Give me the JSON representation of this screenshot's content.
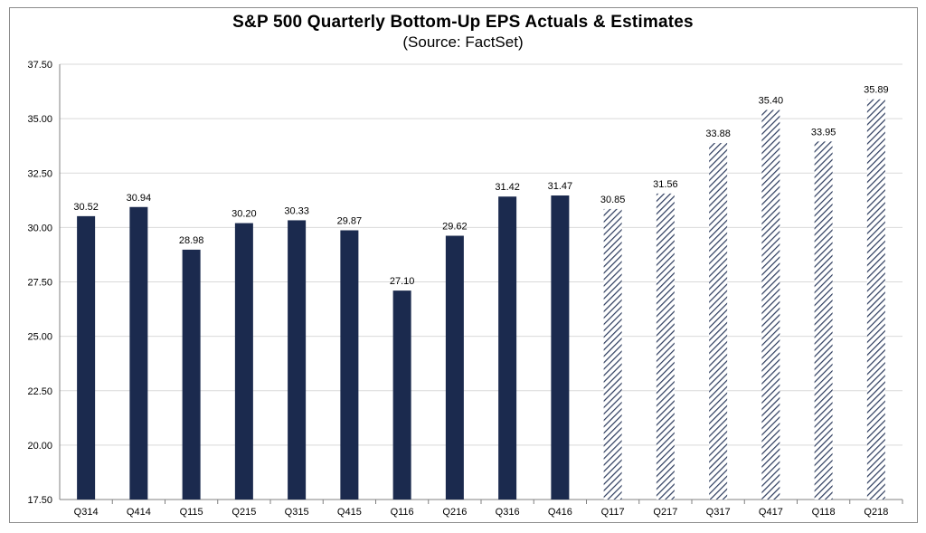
{
  "chart_data": {
    "type": "bar",
    "title": "S&P 500 Quarterly Bottom-Up EPS Actuals & Estimates",
    "subtitle": "(Source: FactSet)",
    "xlabel": "",
    "ylabel": "",
    "ylim": [
      17.5,
      37.5
    ],
    "yticks": [
      "17.50",
      "20.00",
      "22.50",
      "25.00",
      "27.50",
      "30.00",
      "32.50",
      "35.00",
      "37.50"
    ],
    "grid": true,
    "categories": [
      "Q314",
      "Q414",
      "Q115",
      "Q215",
      "Q315",
      "Q415",
      "Q116",
      "Q216",
      "Q316",
      "Q416",
      "Q117",
      "Q217",
      "Q317",
      "Q417",
      "Q118",
      "Q218"
    ],
    "values": [
      30.52,
      30.94,
      28.98,
      30.2,
      30.33,
      29.87,
      27.1,
      29.62,
      31.42,
      31.47,
      30.85,
      31.56,
      33.88,
      35.4,
      33.95,
      35.89
    ],
    "value_labels": [
      "30.52",
      "30.94",
      "28.98",
      "30.20",
      "30.33",
      "29.87",
      "27.10",
      "29.62",
      "31.42",
      "31.47",
      "30.85",
      "31.56",
      "33.88",
      "35.40",
      "33.95",
      "35.89"
    ],
    "bar_style": [
      "solid",
      "solid",
      "solid",
      "solid",
      "solid",
      "solid",
      "solid",
      "solid",
      "solid",
      "solid",
      "hatched",
      "hatched",
      "hatched",
      "hatched",
      "hatched",
      "hatched"
    ],
    "colors": {
      "actual": "#1b2a4e",
      "estimate_hatch": "#2b3a5c",
      "grid": "#d9d9d9",
      "axis": "#808080"
    }
  }
}
